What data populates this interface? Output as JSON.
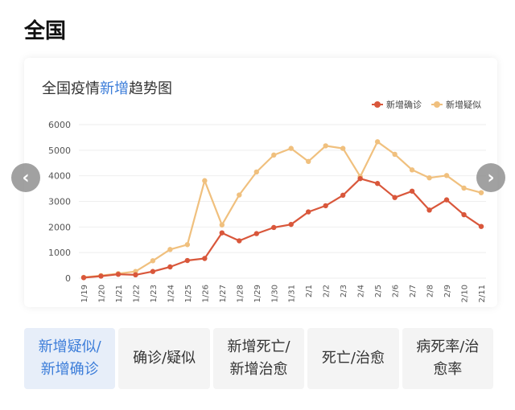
{
  "page": {
    "heading": "全国"
  },
  "chart_title": {
    "prefix": "全国疫情",
    "highlight": "新增",
    "suffix": "趋势图"
  },
  "nav": {
    "prev_icon": "chevron-left-icon",
    "next_icon": "chevron-right-icon"
  },
  "colors": {
    "confirmed": "#d9573b",
    "suspected": "#f0c07e",
    "accent": "#3c7dd9",
    "grid": "#eeeeee"
  },
  "tabs": [
    {
      "lines": [
        "新增疑似/",
        "新增确诊"
      ],
      "active": true
    },
    {
      "lines": [
        "确诊/疑似"
      ],
      "active": false
    },
    {
      "lines": [
        "新增死亡/",
        "新增治愈"
      ],
      "active": false
    },
    {
      "lines": [
        "死亡/治愈"
      ],
      "active": false
    },
    {
      "lines": [
        "病死率/治",
        "愈率"
      ],
      "active": false
    }
  ],
  "chart_data": {
    "type": "line",
    "title": "全国疫情新增趋势图",
    "legend_position": "top-right",
    "grid": true,
    "ylim": [
      0,
      6000
    ],
    "yticks": [
      0,
      1000,
      2000,
      3000,
      4000,
      5000,
      6000
    ],
    "categories": [
      "1/19",
      "1/20",
      "1/21",
      "1/22",
      "1/23",
      "1/24",
      "1/25",
      "1/26",
      "1/27",
      "1/28",
      "1/29",
      "1/30",
      "1/31",
      "2/1",
      "2/2",
      "2/3",
      "2/4",
      "2/5",
      "2/6",
      "2/7",
      "2/8",
      "2/9",
      "2/10",
      "2/11"
    ],
    "series": [
      {
        "name": "新增确诊",
        "color": "#d9573b",
        "values": [
          20,
          80,
          150,
          130,
          260,
          440,
          690,
          770,
          1770,
          1460,
          1740,
          1980,
          2100,
          2590,
          2830,
          3240,
          3890,
          3700,
          3150,
          3400,
          2660,
          3060,
          2480,
          2020
        ]
      },
      {
        "name": "新增疑似",
        "color": "#f0c07e",
        "values": [
          30,
          100,
          180,
          260,
          680,
          1120,
          1310,
          3810,
          2080,
          3250,
          4150,
          4810,
          5070,
          4560,
          5170,
          5070,
          3970,
          5330,
          4840,
          4230,
          3920,
          4010,
          3520,
          3340
        ]
      }
    ]
  }
}
